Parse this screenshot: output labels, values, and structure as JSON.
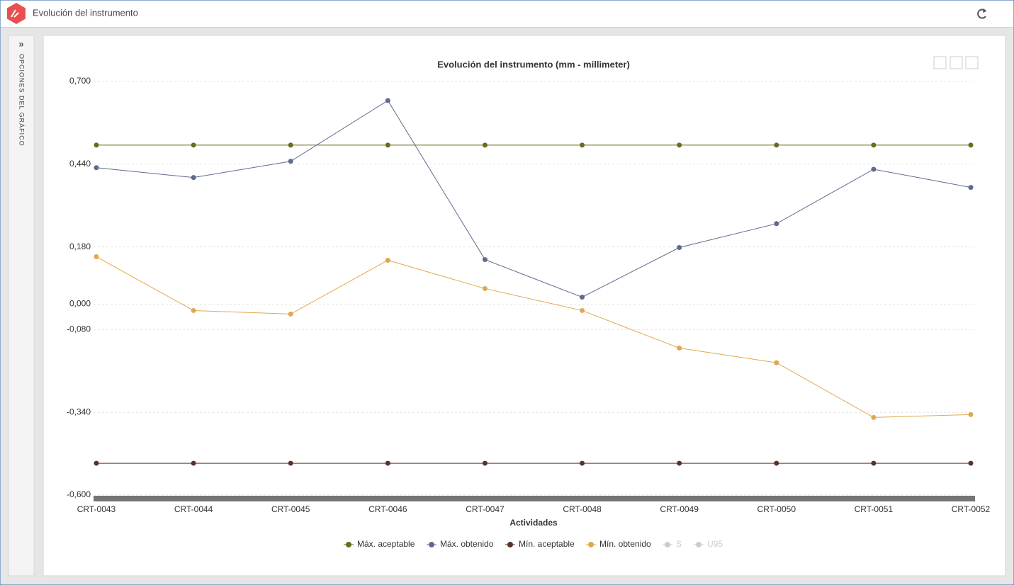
{
  "header": {
    "title": "Evolución del instrumento"
  },
  "sidebar": {
    "label": "OPCIONES DEL GRÁFICO"
  },
  "chart_data": {
    "type": "line",
    "title": "Evolución del instrumento (mm - millimeter)",
    "x_label": "Actividades",
    "categories": [
      "CRT-0043",
      "CRT-0044",
      "CRT-0045",
      "CRT-0046",
      "CRT-0047",
      "CRT-0048",
      "CRT-0049",
      "CRT-0050",
      "CRT-0051",
      "CRT-0052"
    ],
    "ylim": [
      -0.6,
      0.7
    ],
    "yticks": [
      {
        "value": 0.7,
        "label": "0,700"
      },
      {
        "value": 0.44,
        "label": "0,440"
      },
      {
        "value": 0.18,
        "label": "0,180"
      },
      {
        "value": 0,
        "label": "0,000"
      },
      {
        "value": -0.08,
        "label": "-0,080"
      },
      {
        "value": -0.34,
        "label": "-0,340"
      },
      {
        "value": -0.6,
        "label": "-0,600"
      }
    ],
    "grid": true,
    "legend": "bottom",
    "series": [
      {
        "name": "Máx. aceptable",
        "color": "#6b6b1f",
        "values": [
          0.5,
          0.5,
          0.5,
          0.5,
          0.5,
          0.5,
          0.5,
          0.5,
          0.5,
          0.5
        ]
      },
      {
        "name": "Máx. obtenido",
        "color": "#5f6a8e",
        "values": [
          0.429,
          0.398,
          0.449,
          0.64,
          0.14,
          0.022,
          0.178,
          0.253,
          0.424,
          0.367
        ]
      },
      {
        "name": "Mín. aceptable",
        "color": "#5a3227",
        "values": [
          -0.5,
          -0.5,
          -0.5,
          -0.5,
          -0.5,
          -0.5,
          -0.5,
          -0.5,
          -0.5,
          -0.5
        ]
      },
      {
        "name": "Mín. obtenido",
        "color": "#e0a84e",
        "values": [
          0.149,
          -0.02,
          -0.031,
          0.138,
          0.049,
          -0.02,
          -0.138,
          -0.184,
          -0.356,
          -0.347
        ]
      },
      {
        "name": "S",
        "color": "#cccccc",
        "visible": false,
        "values": [
          null,
          null,
          null,
          null,
          null,
          null,
          null,
          null,
          null,
          null
        ]
      },
      {
        "name": "U95",
        "color": "#cccccc",
        "visible": false,
        "values": [
          null,
          null,
          null,
          null,
          null,
          null,
          null,
          null,
          null,
          null
        ]
      }
    ]
  }
}
